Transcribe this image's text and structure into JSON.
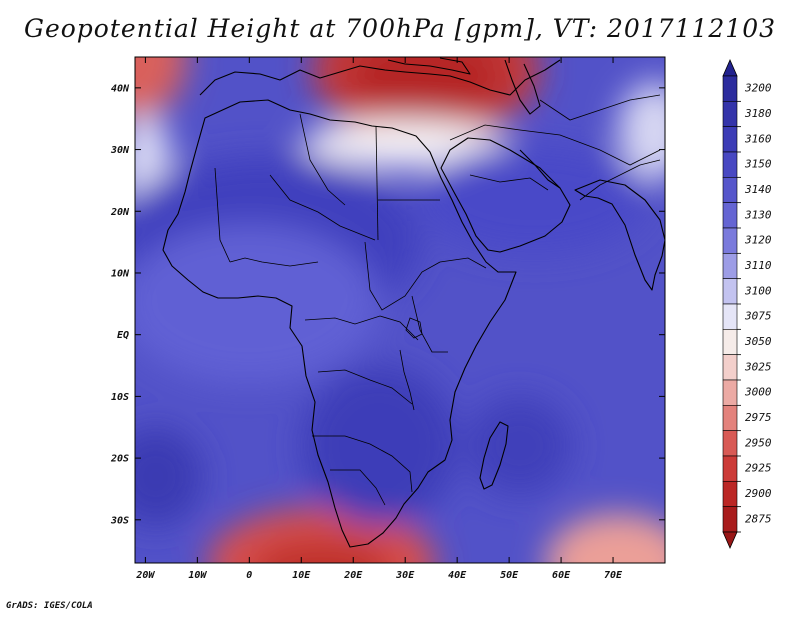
{
  "title": "Geopotential Height at 700hPa [gpm], VT: 2017112103",
  "credit": "GrADS: IGES/COLA",
  "map": {
    "lon_range": [
      -22,
      80
    ],
    "lat_range": [
      -37,
      45
    ],
    "x_ticks": [
      {
        "value": -20,
        "label": "20W"
      },
      {
        "value": -10,
        "label": "10W"
      },
      {
        "value": 0,
        "label": "0"
      },
      {
        "value": 10,
        "label": "10E"
      },
      {
        "value": 20,
        "label": "20E"
      },
      {
        "value": 30,
        "label": "30E"
      },
      {
        "value": 40,
        "label": "40E"
      },
      {
        "value": 50,
        "label": "50E"
      },
      {
        "value": 60,
        "label": "60E"
      },
      {
        "value": 70,
        "label": "70E"
      }
    ],
    "y_ticks": [
      {
        "value": 40,
        "label": "40N"
      },
      {
        "value": 30,
        "label": "30N"
      },
      {
        "value": 20,
        "label": "20N"
      },
      {
        "value": 10,
        "label": "10N"
      },
      {
        "value": 0,
        "label": "EQ"
      },
      {
        "value": -10,
        "label": "10S"
      },
      {
        "value": -20,
        "label": "20S"
      },
      {
        "value": -30,
        "label": "30S"
      }
    ],
    "height_features": [
      {
        "lon": 34,
        "lat": 43,
        "rx": 22,
        "ry": 11,
        "color": "#c43a3a"
      },
      {
        "lon": 34,
        "lat": 42,
        "rx": 15,
        "ry": 7,
        "color": "#b52828"
      },
      {
        "lon": -22,
        "lat": 45,
        "rx": 10,
        "ry": 10,
        "color": "#d9605c"
      },
      {
        "lon": 14,
        "lat": -37,
        "rx": 22,
        "ry": 9,
        "color": "#d8504d"
      },
      {
        "lon": 14,
        "lat": -38,
        "rx": 14,
        "ry": 5,
        "color": "#c0302c"
      },
      {
        "lon": 71,
        "lat": -37,
        "rx": 14,
        "ry": 8,
        "color": "#eb9f98"
      },
      {
        "lon": 30,
        "lat": 31,
        "rx": 20,
        "ry": 4,
        "color": "#f4f0f4"
      },
      {
        "lon": -20,
        "lat": 27,
        "rx": 5,
        "ry": 9,
        "color": "#dcdcf5"
      },
      {
        "lon": 78,
        "lat": 33,
        "rx": 7,
        "ry": 8,
        "color": "#d6d6f2"
      },
      {
        "lon": 3,
        "lat": 15,
        "rx": 30,
        "ry": 14,
        "color": "#4141be"
      },
      {
        "lon": 55,
        "lat": 22,
        "rx": 22,
        "ry": 9,
        "color": "#4a4ac8"
      },
      {
        "lon": 25,
        "lat": -18,
        "rx": 15,
        "ry": 13,
        "color": "#3e3eb8"
      },
      {
        "lon": 52,
        "lat": -18,
        "rx": 10,
        "ry": 8,
        "color": "#4040ba"
      },
      {
        "lon": -18,
        "lat": -23,
        "rx": 9,
        "ry": 8,
        "color": "#3b3bb2"
      },
      {
        "lon": 0,
        "lat": 5,
        "rx": 25,
        "ry": 13,
        "color": "#6060d4"
      }
    ]
  },
  "colorbar": {
    "levels": [
      {
        "label": "3200",
        "color": "#2c2c9e"
      },
      {
        "label": "3180",
        "color": "#3434aa"
      },
      {
        "label": "3160",
        "color": "#3c3cb6"
      },
      {
        "label": "3150",
        "color": "#4848c2"
      },
      {
        "label": "3140",
        "color": "#5656cb"
      },
      {
        "label": "3130",
        "color": "#6565d3"
      },
      {
        "label": "3120",
        "color": "#7a7adc"
      },
      {
        "label": "3110",
        "color": "#9d9de6"
      },
      {
        "label": "3100",
        "color": "#c3c3f0"
      },
      {
        "label": "3075",
        "color": "#e5e5f7"
      },
      {
        "label": "3050",
        "color": "#f6ece9"
      },
      {
        "label": "3025",
        "color": "#f3cfcb"
      },
      {
        "label": "3000",
        "color": "#ecaaa4"
      },
      {
        "label": "2975",
        "color": "#e3827c"
      },
      {
        "label": "2950",
        "color": "#d85a55"
      },
      {
        "label": "2925",
        "color": "#cc3b38"
      },
      {
        "label": "2900",
        "color": "#bb2725"
      },
      {
        "label": "2875",
        "color": "#a81c1c"
      }
    ],
    "top_arrow_color": "#22228e",
    "bottom_arrow_color": "#981616"
  }
}
